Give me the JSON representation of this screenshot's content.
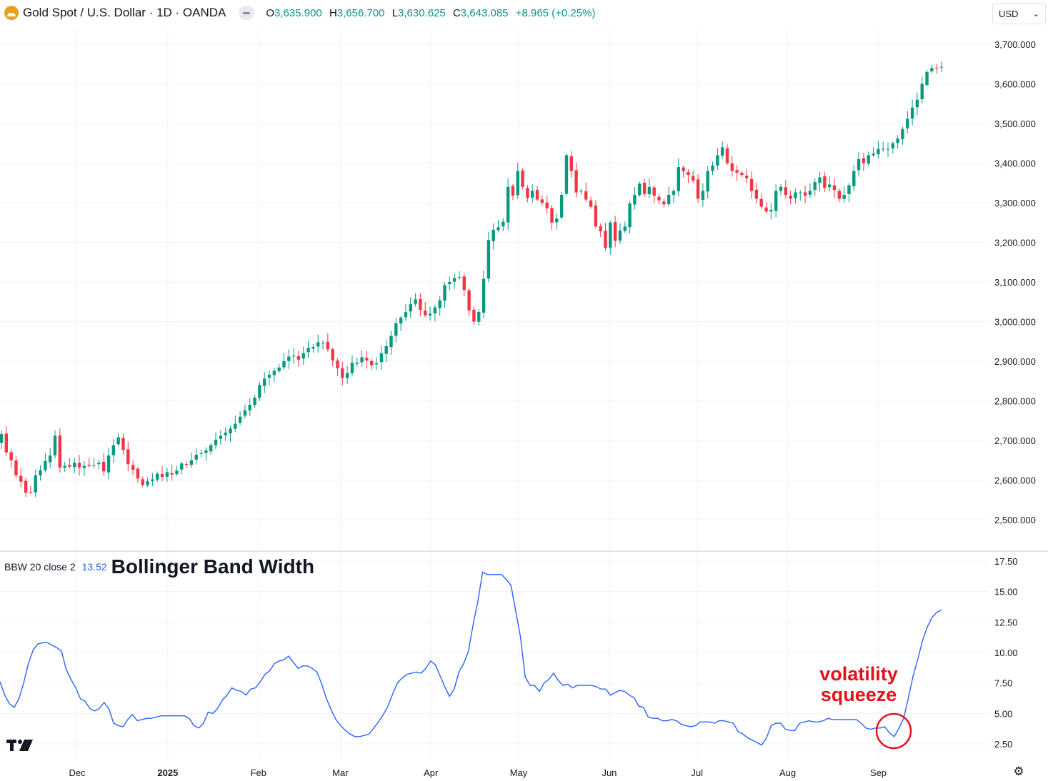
{
  "header": {
    "symbol": "Gold Spot / U.S. Dollar · 1D · OANDA",
    "o_label": "O",
    "o_value": "3,635.900",
    "h_label": "H",
    "h_value": "3,656.700",
    "l_label": "L",
    "l_value": "3,630.625",
    "c_label": "C",
    "c_value": "3,643.085",
    "change": "+8.965 (+0.25%)"
  },
  "currency": {
    "label": "USD",
    "icon": "chevron-down-icon"
  },
  "indicator": {
    "name": "BBW 20 close 2",
    "value": "13.52",
    "title": "Bollinger Band Width"
  },
  "annotation": {
    "line1": "volatility",
    "line2": "squeeze",
    "color": "#e3121b"
  },
  "colors": {
    "up": "#089981",
    "down": "#f23645",
    "bbw_line": "#2962ff",
    "grid": "#f0f3fa",
    "brand": "#e5a21a"
  },
  "chart_data": [
    {
      "type": "candlestick",
      "title": "Gold Spot / U.S. Dollar · 1D · OANDA",
      "y_axis_labels": [
        "3,700.000",
        "3,600.000",
        "3,500.000",
        "3,400.000",
        "3,300.000",
        "3,200.000",
        "3,100.000",
        "3,000.000",
        "2,900.000",
        "2,800.000",
        "2,700.000",
        "2,600.000",
        "2,500.000"
      ],
      "y_axis_values": [
        3700,
        3600,
        3500,
        3400,
        3300,
        3200,
        3100,
        3000,
        2900,
        2800,
        2700,
        2600,
        2500
      ],
      "x_axis_labels": [
        "Dec",
        "2025",
        "Feb",
        "Mar",
        "Apr",
        "May",
        "Jun",
        "Jul",
        "Aug",
        "Sep"
      ],
      "x_axis_label_days": [
        14,
        45,
        76,
        104,
        135,
        165,
        196,
        226,
        257,
        288
      ],
      "x_range_days": [
        -11,
        333
      ],
      "ylim": [
        2420,
        3735
      ],
      "closes": [
        2716,
        2670,
        2650,
        2612,
        2596,
        2568,
        2569,
        2612,
        2625,
        2648,
        2662,
        2712,
        2632,
        2636,
        2634,
        2644,
        2632,
        2636,
        2636,
        2638,
        2644,
        2622,
        2662,
        2688,
        2708,
        2676,
        2640,
        2626,
        2604,
        2588,
        2597,
        2602,
        2616,
        2608,
        2620,
        2614,
        2624,
        2642,
        2640,
        2650,
        2664,
        2668,
        2675,
        2688,
        2702,
        2712,
        2720,
        2730,
        2742,
        2760,
        2776,
        2790,
        2808,
        2840,
        2856,
        2866,
        2876,
        2884,
        2900,
        2912,
        2914,
        2904,
        2920,
        2934,
        2936,
        2948,
        2946,
        2930,
        2902,
        2882,
        2858,
        2870,
        2896,
        2896,
        2910,
        2902,
        2890,
        2895,
        2920,
        2938,
        2964,
        2996,
        3010,
        3024,
        3044,
        3056,
        3030,
        3016,
        3020,
        3036,
        3054,
        3092,
        3100,
        3110,
        3112,
        3080,
        3028,
        3000,
        3024,
        3108,
        3206,
        3232,
        3238,
        3252,
        3340,
        3318,
        3380,
        3340,
        3312,
        3330,
        3308,
        3300,
        3286,
        3250,
        3260,
        3320,
        3420,
        3380,
        3326,
        3330,
        3308,
        3290,
        3240,
        3228,
        3186,
        3250,
        3204,
        3230,
        3240,
        3298,
        3320,
        3348,
        3322,
        3340,
        3318,
        3306,
        3296,
        3320,
        3330,
        3390,
        3380,
        3370,
        3356,
        3310,
        3330,
        3380,
        3394,
        3420,
        3440,
        3400,
        3380,
        3376,
        3370,
        3362,
        3330,
        3310,
        3290,
        3278,
        3282,
        3330,
        3340,
        3320,
        3310,
        3326,
        3326,
        3318,
        3330,
        3352,
        3364,
        3338,
        3346,
        3332,
        3310,
        3320,
        3344,
        3380,
        3410,
        3400,
        3420,
        3424,
        3436,
        3436,
        3436,
        3450,
        3462,
        3486,
        3512,
        3540,
        3560,
        3600,
        3630,
        3640,
        3640,
        3643
      ]
    },
    {
      "type": "line",
      "title": "Bollinger Band Width",
      "series": [
        {
          "name": "BBW 20 close 2",
          "values": [
            7.6,
            6.5,
            5.8,
            5.5,
            6.2,
            7.5,
            9.1,
            10.2,
            10.7,
            10.8,
            10.8,
            10.6,
            10.4,
            10.1,
            8.6,
            7.8,
            7.1,
            6.2,
            6.0,
            5.4,
            5.2,
            5.4,
            5.9,
            5.4,
            4.2,
            4.0,
            3.9,
            4.5,
            4.9,
            4.4,
            4.5,
            4.6,
            4.6,
            4.7,
            4.8,
            4.8,
            4.8,
            4.8,
            4.8,
            4.8,
            4.6,
            4.0,
            3.8,
            4.2,
            5.1,
            5.0,
            5.4,
            6.1,
            6.5,
            7.1,
            6.9,
            6.8,
            6.5,
            7.0,
            7.1,
            7.6,
            8.2,
            8.5,
            9.1,
            9.3,
            9.4,
            9.7,
            9.2,
            8.7,
            8.9,
            8.9,
            8.7,
            8.4,
            7.4,
            6.2,
            5.3,
            4.5,
            4.0,
            3.6,
            3.3,
            3.1,
            3.1,
            3.2,
            3.3,
            3.8,
            4.3,
            4.9,
            5.6,
            6.6,
            7.5,
            7.9,
            8.2,
            8.3,
            8.4,
            8.3,
            8.7,
            9.3,
            9.0,
            8.1,
            7.2,
            6.4,
            7.0,
            8.4,
            9.1,
            10.1,
            12.3,
            14.2,
            16.6,
            16.4,
            16.4,
            16.4,
            16.4,
            16.0,
            15.5,
            13.4,
            11.3,
            8.0,
            7.3,
            7.3,
            6.8,
            7.5,
            7.8,
            8.3,
            7.7,
            7.3,
            7.4,
            7.1,
            7.3,
            7.3,
            7.3,
            7.3,
            7.2,
            7.0,
            7.0,
            6.5,
            6.7,
            6.9,
            6.8,
            6.5,
            6.3,
            5.6,
            5.5,
            4.7,
            4.6,
            4.6,
            4.4,
            4.4,
            4.5,
            4.4,
            4.1,
            4.0,
            3.9,
            4.0,
            4.3,
            4.3,
            4.3,
            4.2,
            4.4,
            4.4,
            4.3,
            4.2,
            3.5,
            3.3,
            3.0,
            2.8,
            2.6,
            2.4,
            3.0,
            4.0,
            4.2,
            4.2,
            3.7,
            3.6,
            3.6,
            4.2,
            4.3,
            4.4,
            4.3,
            4.3,
            4.4,
            4.6,
            4.5,
            4.5,
            4.5,
            4.5,
            4.5,
            4.5,
            4.2,
            3.8,
            3.7,
            3.8,
            3.8,
            3.9,
            3.4,
            3.1,
            3.8,
            4.6,
            6.3,
            8.1,
            9.5,
            11.0,
            12.1,
            12.9,
            13.3,
            13.5
          ]
        }
      ],
      "y_axis_labels": [
        "17.50",
        "15.00",
        "12.50",
        "10.00",
        "7.50",
        "5.00",
        "2.50"
      ],
      "y_axis_values": [
        17.5,
        15,
        12.5,
        10,
        7.5,
        5,
        2.5
      ],
      "ylim": [
        1.2,
        18.4
      ]
    }
  ]
}
